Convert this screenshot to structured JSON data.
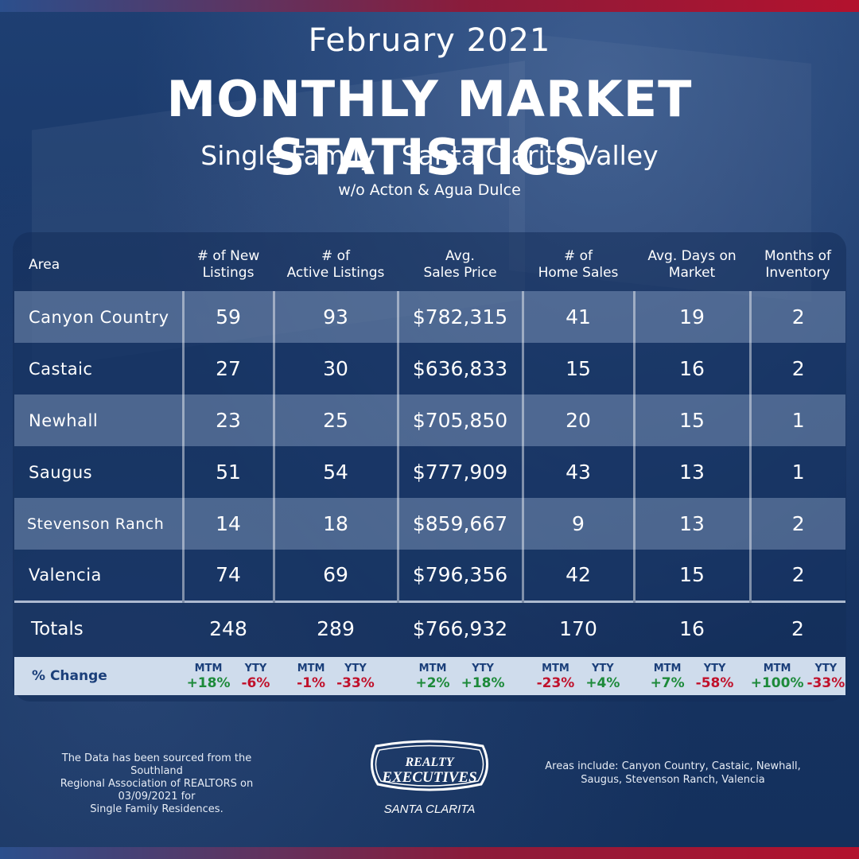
{
  "header": {
    "month": "February 2021",
    "title": "MONTHLY MARKET STATISTICS",
    "subtitle": "Single-Family - Santa Clarita Valley",
    "note": "w/o Acton & Agua Dulce"
  },
  "table": {
    "headers": {
      "area": "Area",
      "new_1": "# of New",
      "new_2": "Listings",
      "active_1": "# of",
      "active_2": "Active Listings",
      "price_1": "Avg.",
      "price_2": "Sales Price",
      "sales_1": "# of",
      "sales_2": "Home Sales",
      "days_1": "Avg. Days on",
      "days_2": "Market",
      "inv_1": "Months of",
      "inv_2": "Inventory"
    },
    "rows": [
      {
        "area": "Canyon Country",
        "new": "59",
        "active": "93",
        "price": "$782,315",
        "sales": "41",
        "days": "19",
        "inv": "2"
      },
      {
        "area": "Castaic",
        "new": "27",
        "active": "30",
        "price": "$636,833",
        "sales": "15",
        "days": "16",
        "inv": "2"
      },
      {
        "area": "Newhall",
        "new": "23",
        "active": "25",
        "price": "$705,850",
        "sales": "20",
        "days": "15",
        "inv": "1"
      },
      {
        "area": "Saugus",
        "new": "51",
        "active": "54",
        "price": "$777,909",
        "sales": "43",
        "days": "13",
        "inv": "1"
      },
      {
        "area": "Stevenson Ranch",
        "new": "14",
        "active": "18",
        "price": "$859,667",
        "sales": "9",
        "days": "13",
        "inv": "2"
      },
      {
        "area": "Valencia",
        "new": "74",
        "active": "69",
        "price": "$796,356",
        "sales": "42",
        "days": "15",
        "inv": "2"
      }
    ],
    "totals": {
      "label": "Totals",
      "new": "248",
      "active": "289",
      "price": "$766,932",
      "sales": "170",
      "days": "16",
      "inv": "2"
    }
  },
  "change": {
    "label": "% Change",
    "mtm_label": "MTM",
    "yty_label": "YTY",
    "new": {
      "mtm": "+18%",
      "yty": "-6%"
    },
    "active": {
      "mtm": "-1%",
      "yty": "-33%"
    },
    "price": {
      "mtm": "+2%",
      "yty": "+18%"
    },
    "sales": {
      "mtm": "-23%",
      "yty": "+4%"
    },
    "days": {
      "mtm": "+7%",
      "yty": "-58%"
    },
    "inv": {
      "mtm": "+100%",
      "yty": "-33%"
    }
  },
  "colors": {
    "positive": "#1d8a3a",
    "negative": "#c0112b",
    "accent": "#b3122e",
    "navy": "#173566"
  },
  "footer": {
    "source_1": "The Data has been sourced from the Southland",
    "source_2": "Regional Association of REALTORS on 03/09/2021 for",
    "source_3": "Single Family Residences.",
    "areas_1": "Areas include: Canyon Country, Castaic, Newhall,",
    "areas_2": "Saugus, Stevenson Ranch, Valencia"
  },
  "logo": {
    "line1": "REALTY",
    "line2": "EXECUTIVES",
    "line3": "SANTA CLARITA"
  }
}
